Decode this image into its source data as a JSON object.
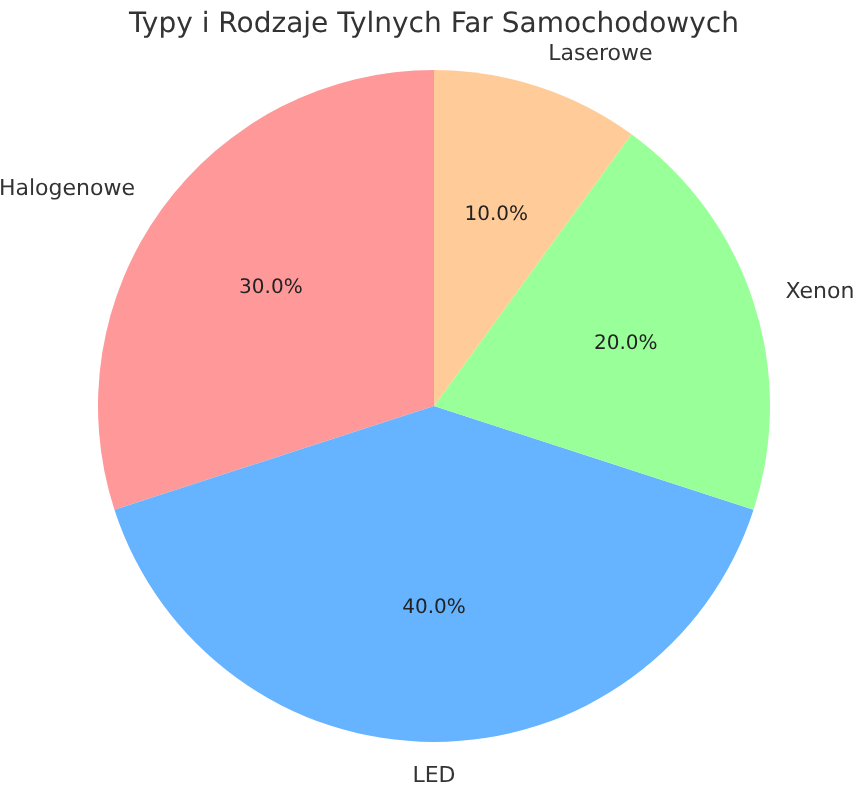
{
  "chart_data": {
    "type": "pie",
    "title": "Typy i Rodzaje Tylnych Far Samochodowych",
    "categories": [
      "Halogenowe",
      "LED",
      "Xenon",
      "Laserowe"
    ],
    "values": [
      30,
      40,
      20,
      10
    ],
    "colors": [
      "#ff9999",
      "#66b3ff",
      "#99ff99",
      "#ffcc99"
    ],
    "value_labels": [
      "30.0%",
      "40.0%",
      "20.0%",
      "10.0%"
    ]
  }
}
